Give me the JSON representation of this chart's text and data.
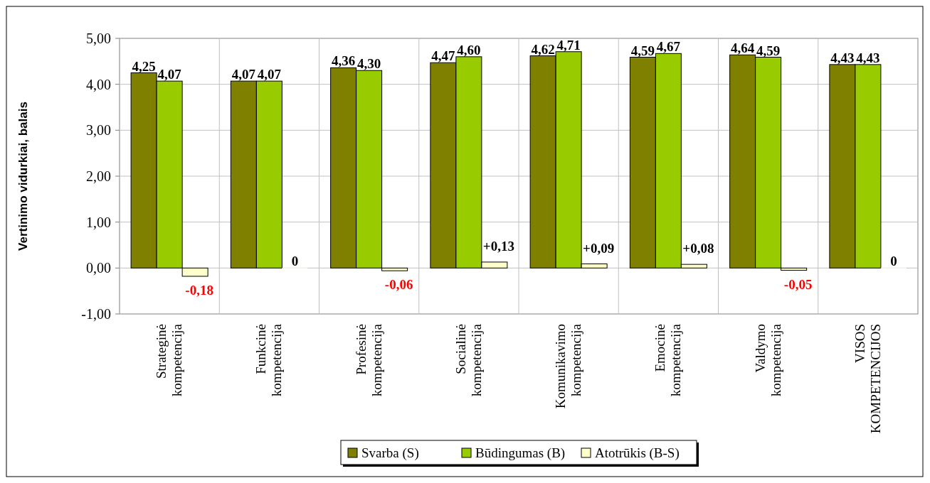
{
  "chart_data": {
    "type": "bar",
    "ylabel": "Vertinimo vidurkiai, balais",
    "categories": [
      "Strateginė kompetencija",
      "Funkcinė kompetencija",
      "Profesinė kompetencija",
      "Socialinė kompetencija",
      "Komunikavimo kompetencija",
      "Emocinė kompetencija",
      "Valdymo kompetencija",
      "VISOS KOMPETENCIJOS"
    ],
    "series": [
      {
        "name": "Svarba (S)",
        "color": "#808000",
        "values": [
          4.25,
          4.07,
          4.36,
          4.47,
          4.62,
          4.59,
          4.64,
          4.43
        ],
        "value_labels": [
          "4,25",
          "4,07",
          "4,36",
          "4,47",
          "4,62",
          "4,59",
          "4,64",
          "4,43"
        ]
      },
      {
        "name": "Būdingumas (B)",
        "color": "#99cc00",
        "values": [
          4.07,
          4.07,
          4.3,
          4.6,
          4.71,
          4.67,
          4.59,
          4.43
        ],
        "value_labels": [
          "4,07",
          "4,07",
          "4,30",
          "4,60",
          "4,71",
          "4,67",
          "4,59",
          "4,43"
        ]
      },
      {
        "name": "Atotrūkis (B-S)",
        "color": "#ffffcc",
        "values": [
          -0.18,
          0,
          -0.06,
          0.13,
          0.09,
          0.08,
          -0.05,
          0
        ],
        "value_labels": [
          "-0,18",
          "0",
          "-0,06",
          "+0,13",
          "+0,09",
          "+0,08",
          "-0,05",
          "0"
        ]
      }
    ],
    "ylim": [
      -1,
      5
    ],
    "yticks": [
      {
        "value": -1,
        "label": "-1,00"
      },
      {
        "value": 0,
        "label": "0,00"
      },
      {
        "value": 1,
        "label": "1,00"
      },
      {
        "value": 2,
        "label": "2,00"
      },
      {
        "value": 3,
        "label": "3,00"
      },
      {
        "value": 4,
        "label": "4,00"
      },
      {
        "value": 5,
        "label": "5,00"
      }
    ],
    "grid": "y",
    "legend": "bottom"
  }
}
